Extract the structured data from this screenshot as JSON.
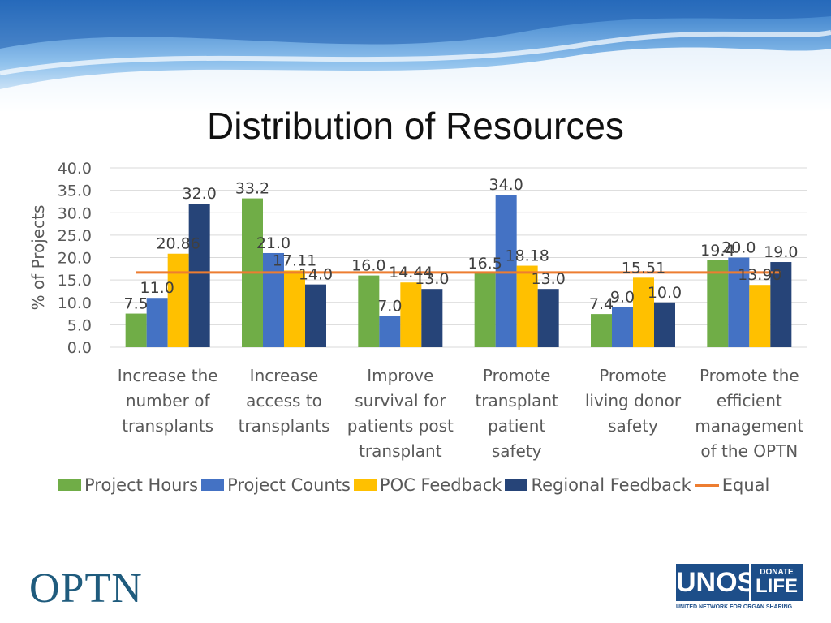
{
  "slide": {
    "title": "Distribution of Resources"
  },
  "chart_data": {
    "type": "bar",
    "title": "",
    "xlabel": "",
    "ylabel": "% of Projects",
    "ylim": [
      0,
      40
    ],
    "yticks": [
      "0.0",
      "5.0",
      "10.0",
      "15.0",
      "20.0",
      "25.0",
      "30.0",
      "35.0",
      "40.0"
    ],
    "grid": true,
    "legend_position": "bottom",
    "categories": [
      [
        "Increase the",
        "number of",
        "transplants"
      ],
      [
        "Increase",
        "access to",
        "transplants"
      ],
      [
        "Improve",
        "survival for",
        "patients post",
        "transplant"
      ],
      [
        "Promote",
        "transplant",
        "patient",
        "safety"
      ],
      [
        "Promote",
        "living donor",
        "safety"
      ],
      [
        "Promote the",
        "efficient",
        "management",
        "of the OPTN"
      ]
    ],
    "series": [
      {
        "name": "Project Hours",
        "color": "#70ad47",
        "values": [
          7.5,
          33.2,
          16.0,
          16.5,
          7.4,
          19.4
        ],
        "labels": [
          "7.5",
          "33.2",
          "16.0",
          "16.5",
          "7.4",
          "19.4"
        ]
      },
      {
        "name": "Project Counts",
        "color": "#4472c4",
        "values": [
          11.0,
          21.0,
          7.0,
          34.0,
          9.0,
          20.0
        ],
        "labels": [
          "11.0",
          "21.0",
          "7.0",
          "34.0",
          "9.0",
          "20.0"
        ]
      },
      {
        "name": "POC Feedback",
        "color": "#ffc000",
        "values": [
          20.86,
          17.11,
          14.44,
          18.18,
          15.51,
          13.9
        ],
        "labels": [
          "20.86",
          "17.11",
          "14.44",
          "18.18",
          "15.51",
          "13.90"
        ]
      },
      {
        "name": "Regional Feedback",
        "color": "#264478",
        "values": [
          32.0,
          14.0,
          13.0,
          13.0,
          10.0,
          19.0
        ],
        "labels": [
          "32.0",
          "14.0",
          "13.0",
          "13.0",
          "10.0",
          "19.0"
        ]
      }
    ],
    "reference_line": {
      "name": "Equal",
      "color": "#ed7d31",
      "value": 16.67
    }
  },
  "logos": {
    "optn": "OPTN",
    "unos": "UNOS",
    "donate_top": "DONATE",
    "donate_bottom": "LIFE",
    "unos_tagline": "UNITED NETWORK FOR ORGAN SHARING"
  }
}
